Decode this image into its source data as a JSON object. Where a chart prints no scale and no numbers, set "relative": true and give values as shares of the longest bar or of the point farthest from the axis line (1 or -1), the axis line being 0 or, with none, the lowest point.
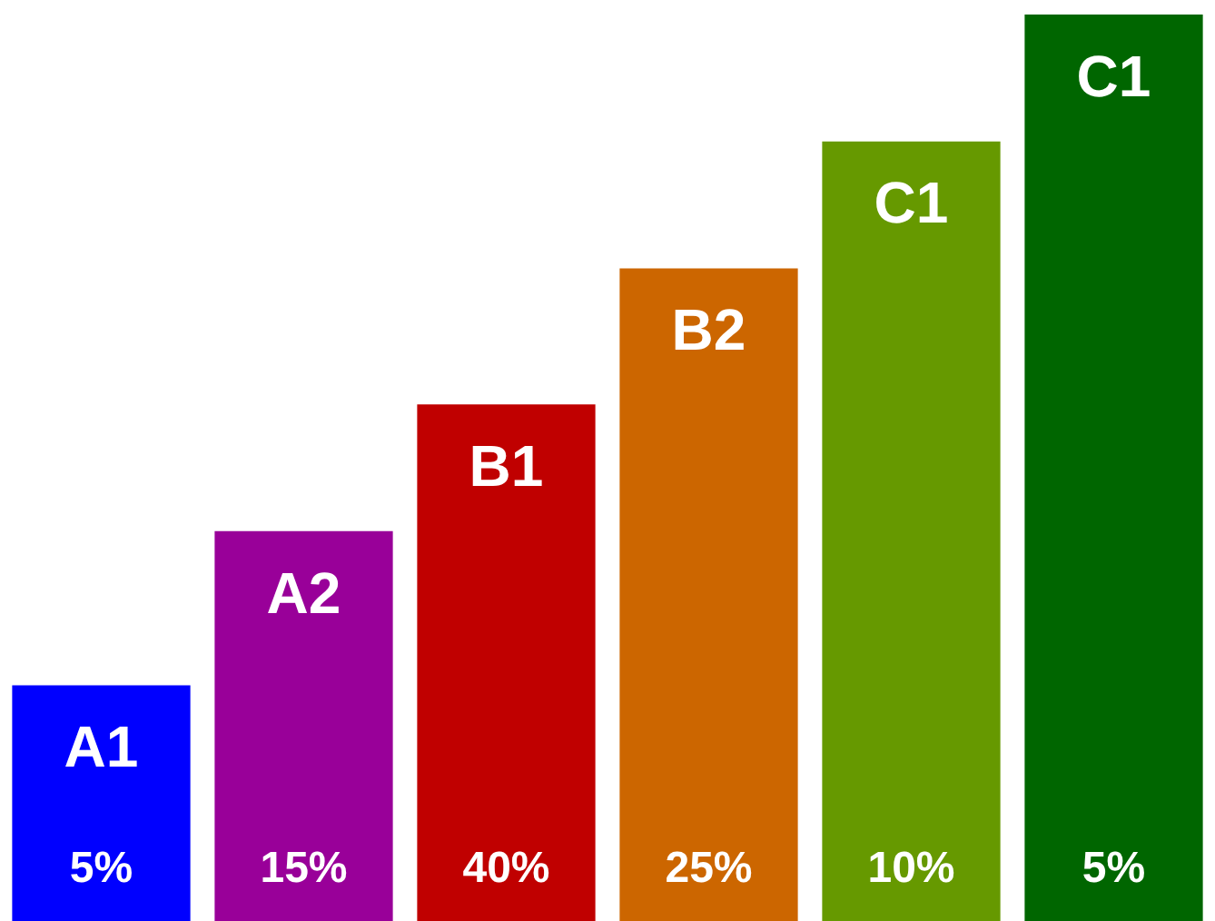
{
  "chart_data": {
    "type": "bar",
    "relative": true,
    "categories": [
      "A1",
      "A2",
      "B1",
      "B2",
      "C1",
      "C1"
    ],
    "values": [
      0.26,
      0.43,
      0.57,
      0.72,
      0.86,
      1
    ],
    "colors": [
      "#0000ff",
      "#990099",
      "#c00000",
      "#cc6600",
      "#669900",
      "#006600"
    ],
    "annotations": [
      "5%",
      "15%",
      "40%",
      "25%",
      "10%",
      "5%"
    ],
    "legend": false
  }
}
